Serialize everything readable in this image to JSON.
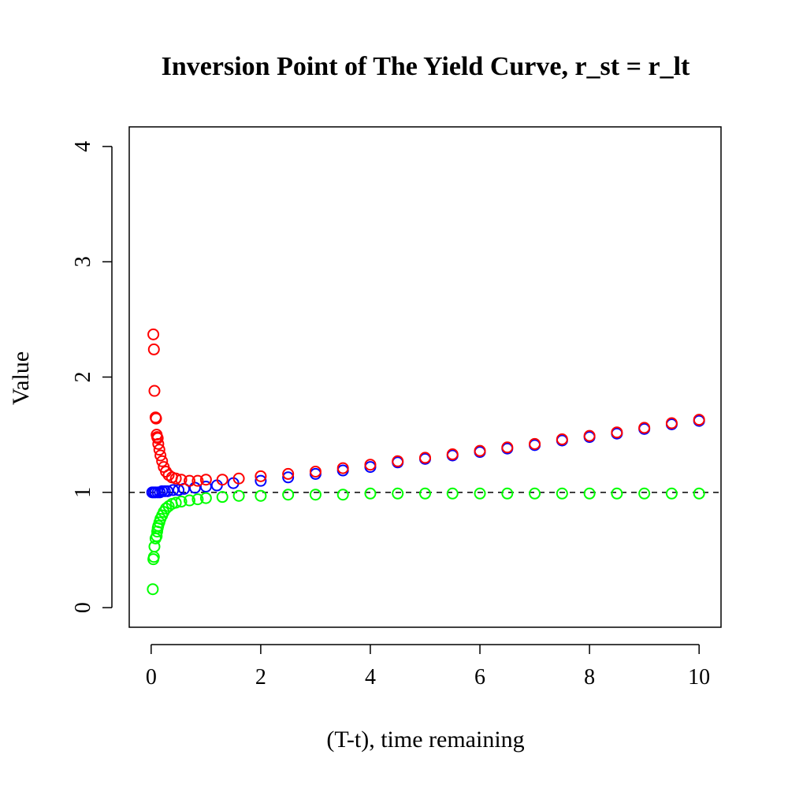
{
  "chart_data": {
    "type": "scatter",
    "title": "Inversion Point of The Yield Curve, r_st = r_lt",
    "xlabel": "(T-t), time remaining",
    "ylabel": "Value",
    "xlim": [
      -0.4,
      10.4
    ],
    "ylim": [
      -0.17,
      4.17
    ],
    "xticks": [
      0,
      2,
      4,
      6,
      8,
      10
    ],
    "yticks": [
      0,
      1,
      2,
      3,
      4
    ],
    "xtick_labels": [
      "0",
      "2",
      "4",
      "6",
      "8",
      "10"
    ],
    "ytick_labels": [
      "0",
      "1",
      "2",
      "3",
      "4"
    ],
    "grid": false,
    "reference_line": {
      "y": 1,
      "style": "dashed",
      "color": "#000000"
    },
    "series": [
      {
        "color": "#0000ff",
        "x": [
          0.02,
          0.05,
          0.08,
          0.12,
          0.16,
          0.2,
          0.25,
          0.3,
          0.4,
          0.5,
          0.6,
          0.8,
          1.0,
          1.2,
          1.5,
          2.0,
          2.5,
          3.0,
          3.5,
          4.0,
          4.5,
          5.0,
          5.5,
          6.0,
          6.5,
          7.0,
          7.5,
          8.0,
          8.5,
          9.0,
          9.5,
          10.0
        ],
        "y": [
          1.0,
          1.0,
          1.0,
          1.0,
          1.0,
          1.01,
          1.01,
          1.01,
          1.02,
          1.02,
          1.03,
          1.04,
          1.05,
          1.06,
          1.08,
          1.1,
          1.13,
          1.16,
          1.19,
          1.22,
          1.26,
          1.29,
          1.32,
          1.35,
          1.38,
          1.41,
          1.45,
          1.48,
          1.51,
          1.55,
          1.59,
          1.62
        ]
      },
      {
        "color": "#ff0000",
        "x": [
          0.04,
          0.05,
          0.06,
          0.08,
          0.09,
          0.1,
          0.11,
          0.12,
          0.13,
          0.15,
          0.17,
          0.2,
          0.23,
          0.27,
          0.32,
          0.38,
          0.45,
          0.55,
          0.7,
          0.85,
          1.0,
          1.3,
          1.6,
          2.0,
          2.5,
          3.0,
          3.5,
          4.0,
          4.5,
          5.0,
          5.5,
          6.0,
          6.5,
          7.0,
          7.5,
          8.0,
          8.5,
          9.0,
          9.5,
          10.0
        ],
        "y": [
          2.37,
          2.24,
          1.88,
          1.65,
          1.64,
          1.5,
          1.48,
          1.47,
          1.42,
          1.37,
          1.32,
          1.27,
          1.22,
          1.18,
          1.15,
          1.13,
          1.12,
          1.11,
          1.1,
          1.1,
          1.11,
          1.11,
          1.12,
          1.14,
          1.16,
          1.18,
          1.21,
          1.24,
          1.27,
          1.3,
          1.33,
          1.36,
          1.39,
          1.42,
          1.46,
          1.49,
          1.52,
          1.56,
          1.6,
          1.63
        ]
      },
      {
        "color": "#00ff00",
        "x": [
          0.03,
          0.04,
          0.05,
          0.06,
          0.08,
          0.1,
          0.11,
          0.12,
          0.13,
          0.15,
          0.17,
          0.2,
          0.23,
          0.27,
          0.32,
          0.38,
          0.45,
          0.55,
          0.7,
          0.85,
          1.0,
          1.3,
          1.6,
          2.0,
          2.5,
          3.0,
          3.5,
          4.0,
          4.5,
          5.0,
          5.5,
          6.0,
          6.5,
          7.0,
          7.5,
          8.0,
          8.5,
          9.0,
          9.5,
          10.0
        ],
        "y": [
          0.16,
          0.42,
          0.44,
          0.53,
          0.6,
          0.62,
          0.66,
          0.69,
          0.71,
          0.74,
          0.77,
          0.8,
          0.83,
          0.86,
          0.88,
          0.9,
          0.91,
          0.92,
          0.93,
          0.94,
          0.95,
          0.96,
          0.97,
          0.97,
          0.98,
          0.98,
          0.98,
          0.99,
          0.99,
          0.99,
          0.99,
          0.99,
          0.99,
          0.99,
          0.99,
          0.99,
          0.99,
          0.99,
          0.99,
          0.99
        ]
      }
    ]
  }
}
